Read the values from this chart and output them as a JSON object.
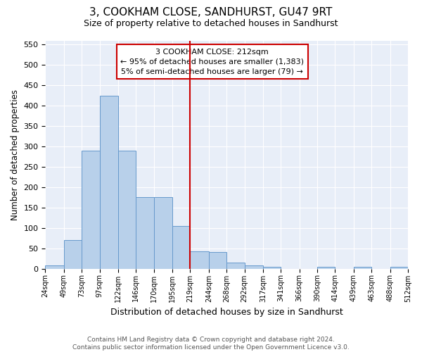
{
  "title": "3, COOKHAM CLOSE, SANDHURST, GU47 9RT",
  "subtitle": "Size of property relative to detached houses in Sandhurst",
  "xlabel": "Distribution of detached houses by size in Sandhurst",
  "ylabel": "Number of detached properties",
  "bin_edges": [
    24,
    49,
    73,
    97,
    122,
    146,
    170,
    195,
    219,
    244,
    268,
    292,
    317,
    341,
    366,
    390,
    414,
    439,
    463,
    488,
    512
  ],
  "bar_heights": [
    8,
    70,
    290,
    425,
    290,
    175,
    175,
    105,
    42,
    40,
    15,
    8,
    5,
    0,
    0,
    5,
    0,
    5,
    0,
    5
  ],
  "bar_color": "#b8d0ea",
  "bar_edge_color": "#6699cc",
  "background_color": "#e8eef8",
  "grid_color": "#ffffff",
  "vline_x": 219,
  "vline_color": "#cc0000",
  "annotation_lines": [
    "3 COOKHAM CLOSE: 212sqm",
    "← 95% of detached houses are smaller (1,383)",
    "5% of semi-detached houses are larger (79) →"
  ],
  "annotation_box_color": "#cc0000",
  "ylim": [
    0,
    560
  ],
  "yticks": [
    0,
    50,
    100,
    150,
    200,
    250,
    300,
    350,
    400,
    450,
    500,
    550
  ],
  "title_fontsize": 11,
  "subtitle_fontsize": 9,
  "footer_line1": "Contains HM Land Registry data © Crown copyright and database right 2024.",
  "footer_line2": "Contains public sector information licensed under the Open Government Licence v3.0."
}
